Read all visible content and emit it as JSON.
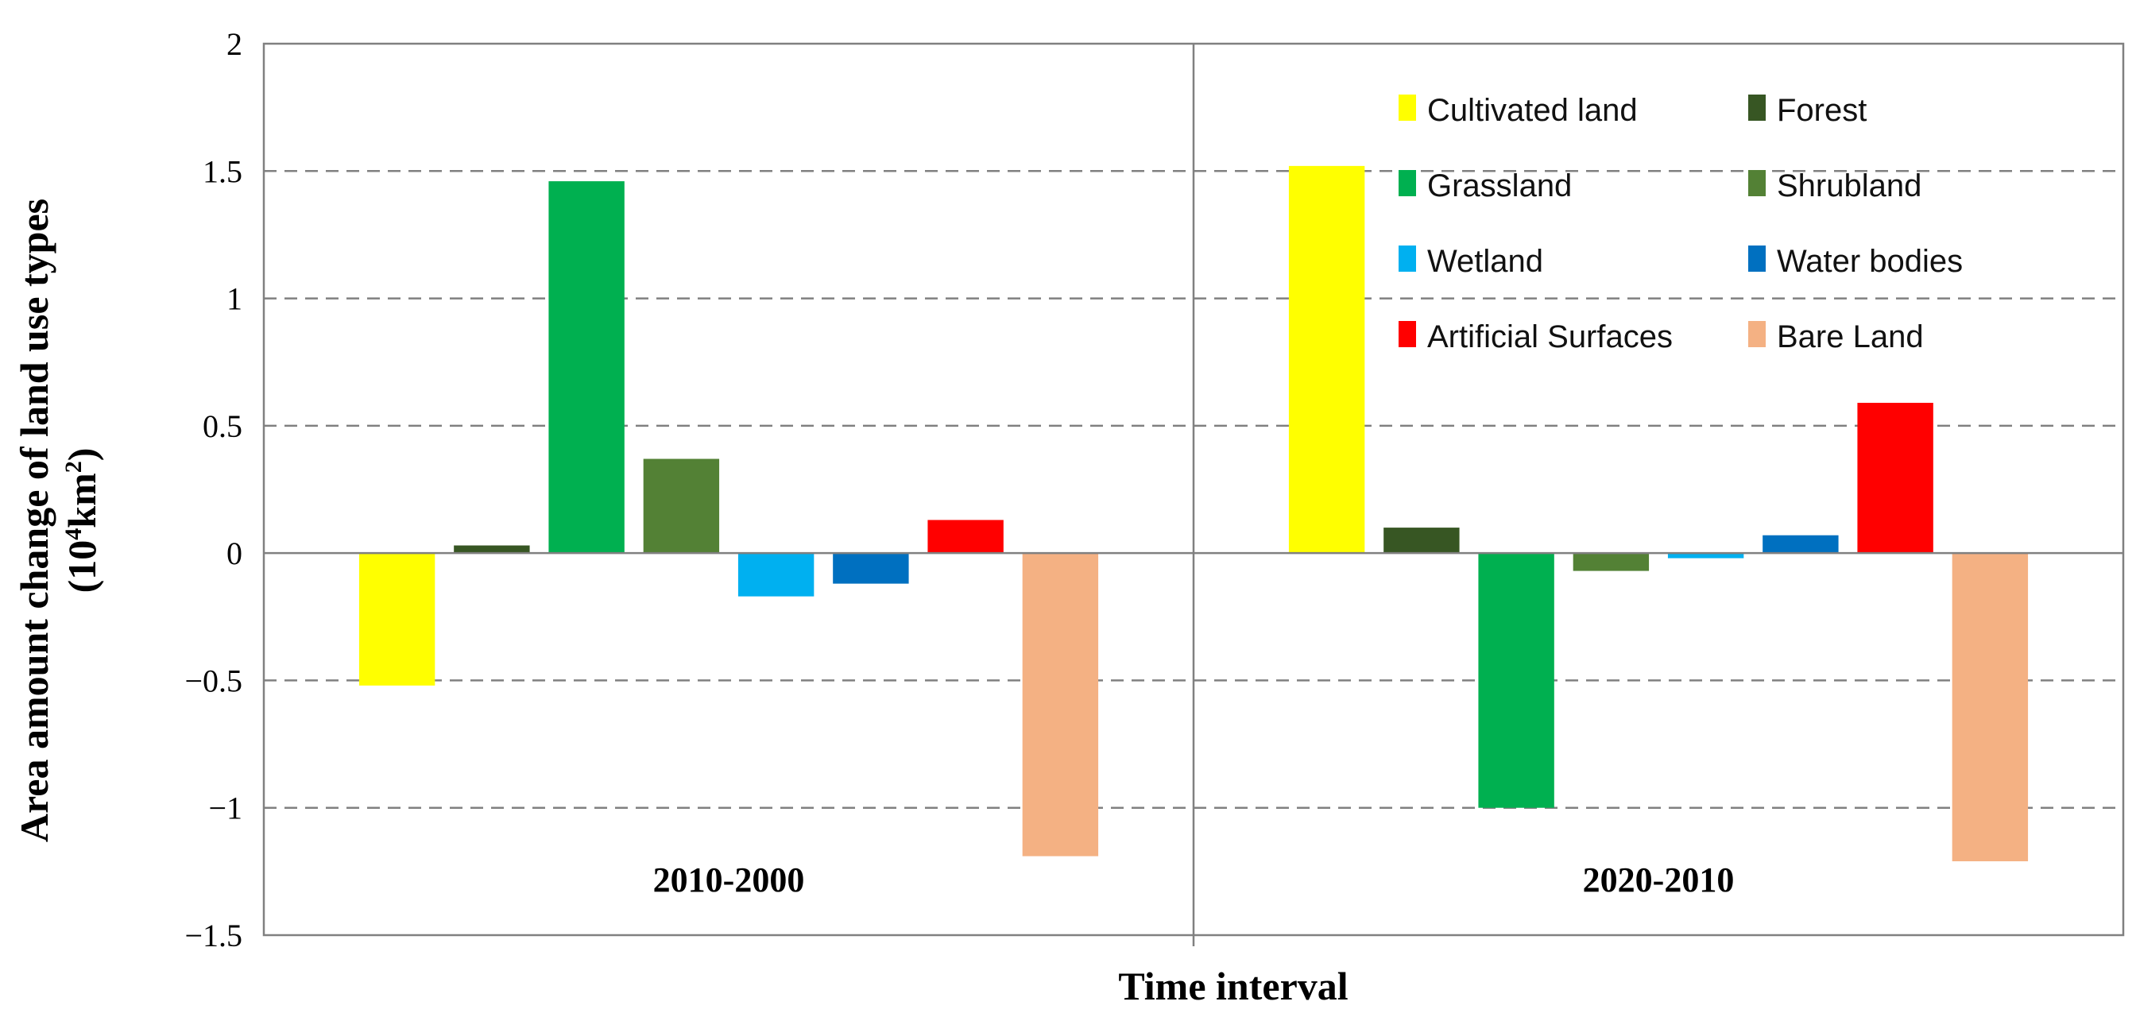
{
  "chart_data": {
    "type": "bar",
    "categories": [
      "2010-2000",
      "2020-2010"
    ],
    "series": [
      {
        "name": "Cultivated land",
        "color": "#ffff00",
        "values": [
          -0.52,
          1.52
        ]
      },
      {
        "name": "Forest",
        "color": "#375623",
        "values": [
          0.03,
          0.1
        ]
      },
      {
        "name": "Grassland",
        "color": "#00b050",
        "values": [
          1.46,
          -1.0
        ]
      },
      {
        "name": "Shrubland",
        "color": "#538135",
        "values": [
          0.37,
          -0.07
        ]
      },
      {
        "name": "Wetland",
        "color": "#00b0f0",
        "values": [
          -0.17,
          -0.02
        ]
      },
      {
        "name": "Water bodies",
        "color": "#0070c0",
        "values": [
          -0.12,
          0.07
        ]
      },
      {
        "name": "Artificial Surfaces",
        "color": "#ff0000",
        "values": [
          0.13,
          0.59
        ]
      },
      {
        "name": "Bare Land",
        "color": "#f4b183",
        "values": [
          -1.19,
          -1.21
        ]
      }
    ],
    "ylim": [
      -1.5,
      2
    ],
    "yticks": [
      2,
      1.5,
      1,
      0.5,
      0,
      -0.5,
      -1,
      -1.5
    ],
    "ytick_labels": [
      "2",
      "1.5",
      "1",
      "0.5",
      "0",
      "−0.5",
      "−1",
      "−1.5"
    ],
    "ylabel_line1": "Area amount change of land use types",
    "ylabel_line2_base": "(10",
    "ylabel_line2_sup1": "4",
    "ylabel_line2_mid": "km",
    "ylabel_line2_sup2": "2",
    "ylabel_line2_end": ")",
    "xlabel": "Time interval",
    "grid": "dashed horizontal",
    "legend_position": "top-right"
  }
}
